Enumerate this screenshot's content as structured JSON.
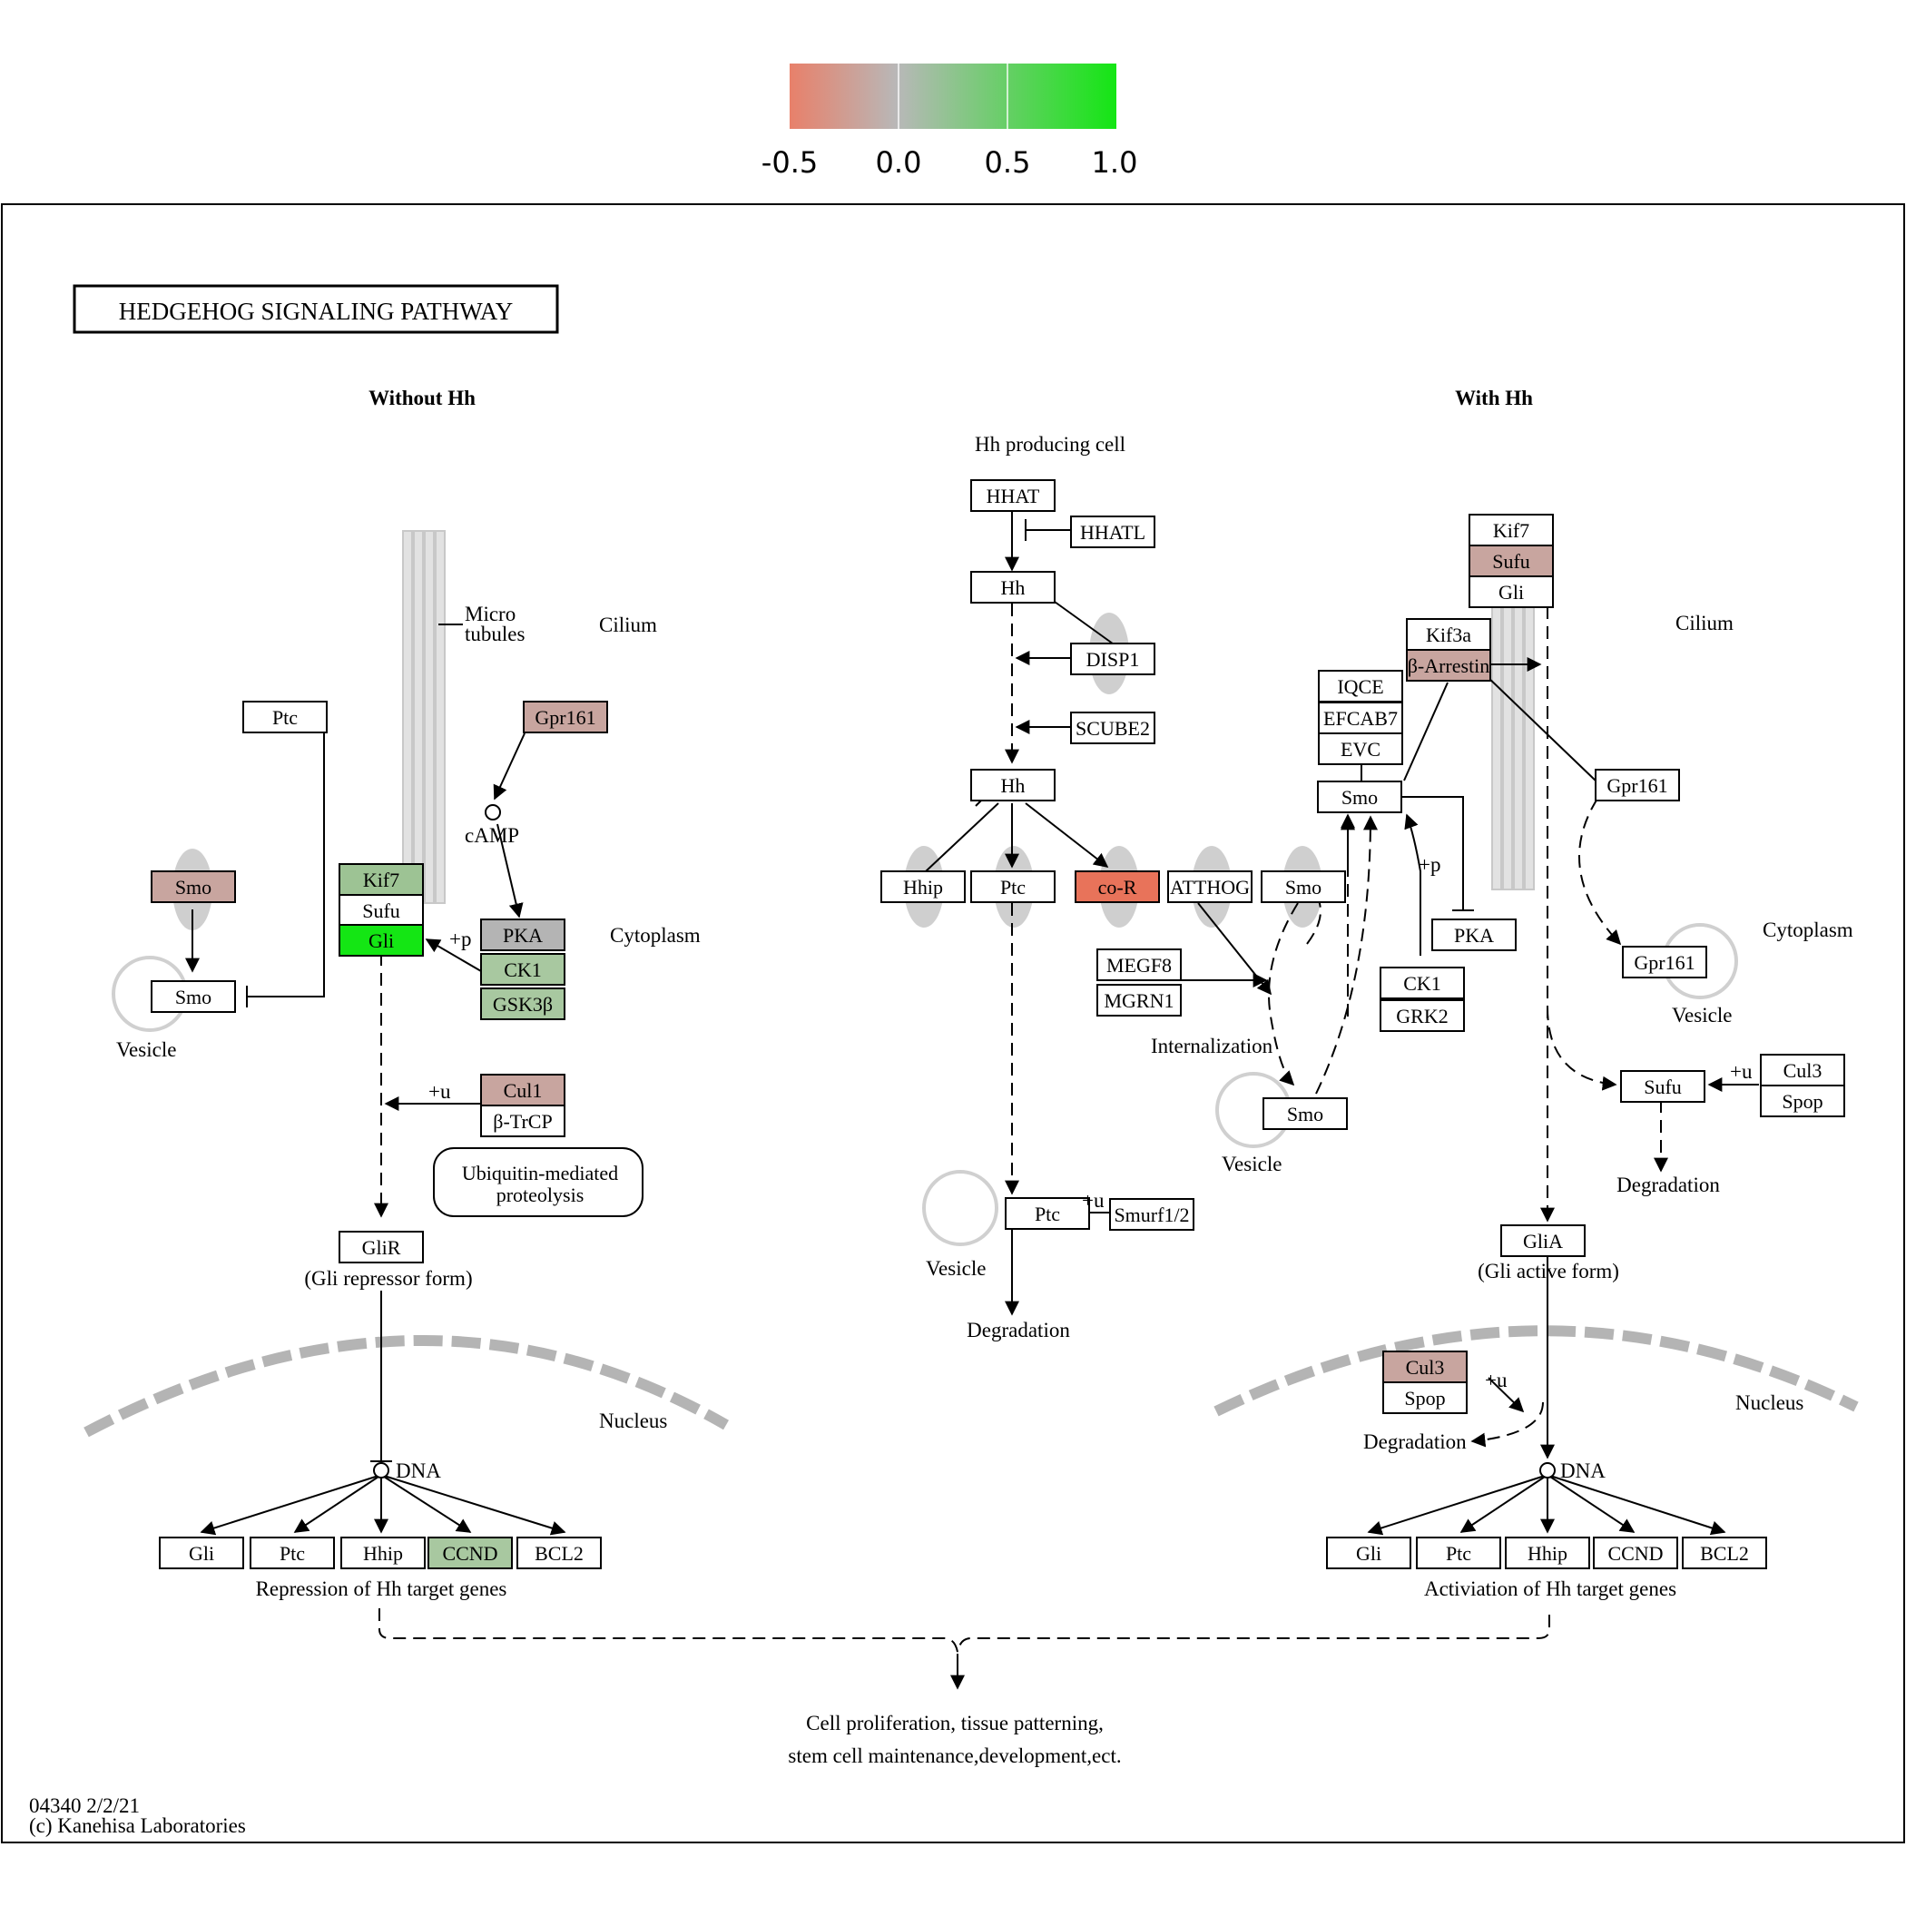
{
  "legend": {
    "ticks": [
      "-0.5",
      "0.0",
      "0.5",
      "1.0"
    ],
    "colors": [
      "#e8806a",
      "#b8b8b8",
      "#14e614"
    ]
  },
  "diagram": {
    "title": "HEDGEHOG SIGNALING PATHWAY",
    "footer_id": "04340 2/2/21",
    "footer_copyright": "(c) Kanehisa Laboratories",
    "nodes": {
      "left_ptc": "Ptc",
      "left_gpr161": "Gpr161",
      "left_smo_top": "Smo",
      "left_smo_vesicle": "Smo",
      "left_kif7": "Kif7",
      "left_sufu": "Sufu",
      "left_gli": "Gli",
      "left_pka": "PKA",
      "left_ck1": "CK1",
      "left_gsk3b": "GSK3β",
      "left_cul1": "Cul1",
      "left_btrcp": "β-TrCP",
      "left_glir": "GliR",
      "left_t_gli": "Gli",
      "left_t_ptc": "Ptc",
      "left_t_hhip": "Hhip",
      "left_t_ccnd": "CCND",
      "left_t_bcl2": "BCL2",
      "mid_hhat": "HHAT",
      "mid_hhatl": "HHATL",
      "mid_hh1": "Hh",
      "mid_disp1": "DISP1",
      "mid_scube2": "SCUBE2",
      "mid_hh2": "Hh",
      "mid_hhip": "Hhip",
      "mid_ptc": "Ptc",
      "mid_cor": "co-R",
      "mid_ptc_vesicle": "Ptc",
      "mid_smurf": "Smurf1/2",
      "mid_atthog": "ATTHOG",
      "mid_smo_mem": "Smo",
      "mid_megf8": "MEGF8",
      "mid_mgrn1": "MGRN1",
      "mid_smo_vesicle": "Smo",
      "right_iqce": "IQCE",
      "right_efcab7": "EFCAB7",
      "right_evc": "EVC",
      "right_smo": "Smo",
      "right_kif3a": "Kif3a",
      "right_barrestin": "β-Arrestin",
      "right_kif7": "Kif7",
      "right_sufu": "Sufu",
      "right_gli": "Gli",
      "right_gpr161": "Gpr161",
      "right_gpr161_vesicle": "Gpr161",
      "right_pka": "PKA",
      "right_ck1": "CK1",
      "right_grk2": "GRK2",
      "right_sufu2": "Sufu",
      "right_cul3": "Cul3",
      "right_spop": "Spop",
      "right_glia": "GliA",
      "right_n_cul3": "Cul3",
      "right_n_spop": "Spop",
      "right_t_gli": "Gli",
      "right_t_ptc": "Ptc",
      "right_t_hhip": "Hhip",
      "right_t_ccnd": "CCND",
      "right_t_bcl2": "BCL2"
    },
    "labels": {
      "without_hh": "Without Hh",
      "with_hh": "With Hh",
      "hh_producing_cell": "Hh producing cell",
      "micro": "Micro",
      "tubules": "tubules",
      "cilium_left": "Cilium",
      "cilium_right": "Cilium",
      "camp": "cAMP",
      "cytoplasm_left": "Cytoplasm",
      "cytoplasm_right": "Cytoplasm",
      "plus_p_left": "+p",
      "plus_u_left": "+u",
      "ubiq1": "Ubiquitin-mediated",
      "ubiq2": "proteolysis",
      "vesicle_left": "Vesicle",
      "glir_form": "(Gli repressor form)",
      "nucleus_left": "Nucleus",
      "dna_left": "DNA",
      "repression": "Repression of Hh target genes",
      "plus_u_mid": "+u",
      "vesicle_mid": "Vesicle",
      "degradation_mid": "Degradation",
      "internalization": "Internalization",
      "vesicle_mid2": "Vesicle",
      "plus_p_right": "+p",
      "vesicle_right": "Vesicle",
      "plus_u_right": "+u",
      "degradation_right": "Degradation",
      "glia_form": "(Gli active form)",
      "nucleus_right": "Nucleus",
      "plus_u_nuc": "+u",
      "degradation_nuc": "Degradation",
      "dna_right": "DNA",
      "activation": "Activiation  of Hh target genes",
      "outcome1": "Cell proliferation, tissue patterning,",
      "outcome2": "stem cell maintenance,development,ect."
    },
    "node_colors": {
      "white": "#ffffff",
      "brown": "#c8a59f",
      "green_light": "#a8c8a0",
      "green_mid": "#9dc394",
      "green_bright": "#14e614",
      "gray": "#b4b4b4",
      "red": "#e8735a"
    }
  }
}
